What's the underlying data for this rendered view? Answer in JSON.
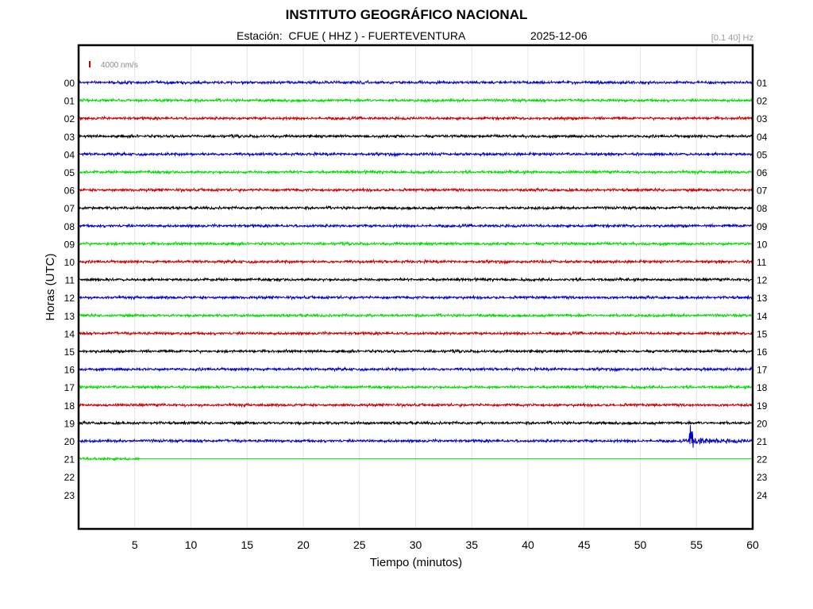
{
  "header": {
    "title": "INSTITUTO GEOGRÁFICO NACIONAL",
    "station_text": "Estación:  CFUE ( HHZ ) - FUERTEVENTURA",
    "date": "2025-12-06",
    "filter": "[0.1 40] Hz"
  },
  "chart_data": {
    "type": "line",
    "title": "INSTITUTO GEOGRÁFICO NACIONAL",
    "xlabel": "Tiempo (minutos)",
    "ylabel": "Horas (UTC)",
    "xlim": [
      0,
      60
    ],
    "x_ticks": [
      "5",
      "10",
      "15",
      "20",
      "25",
      "30",
      "35",
      "40",
      "45",
      "50",
      "55",
      "60"
    ],
    "left_hour_labels": [
      "00",
      "01",
      "02",
      "03",
      "04",
      "05",
      "06",
      "07",
      "08",
      "09",
      "10",
      "11",
      "12",
      "13",
      "14",
      "15",
      "16",
      "17",
      "18",
      "19",
      "20",
      "21",
      "22",
      "23"
    ],
    "right_hour_labels": [
      "01",
      "02",
      "03",
      "04",
      "05",
      "06",
      "07",
      "08",
      "09",
      "10",
      "11",
      "12",
      "13",
      "14",
      "15",
      "16",
      "17",
      "18",
      "19",
      "20",
      "21",
      "22",
      "23",
      "24"
    ],
    "amplitude_scale": "4000 nm/s",
    "grid": true,
    "trace_colors": [
      "#0000cc",
      "#00dd00",
      "#cc0000",
      "#000000"
    ],
    "traces_recorded_hours": 21,
    "last_trace_hour": 21,
    "last_trace_data_end_minute": 5.4,
    "event": {
      "hour": 20,
      "onset_minute": 54.3
    }
  }
}
